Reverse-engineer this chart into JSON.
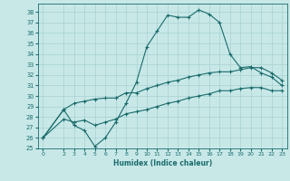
{
  "xlabel": "Humidex (Indice chaleur)",
  "bg_color": "#c8e8e8",
  "grid_color": "#a8d0d0",
  "line_color": "#1a6b6b",
  "xlim": [
    -0.5,
    23.5
  ],
  "ylim": [
    25,
    38.8
  ],
  "yticks": [
    25,
    26,
    27,
    28,
    29,
    30,
    31,
    32,
    33,
    34,
    35,
    36,
    37,
    38
  ],
  "xticks": [
    0,
    2,
    3,
    4,
    5,
    6,
    7,
    8,
    9,
    10,
    11,
    12,
    13,
    14,
    15,
    16,
    17,
    18,
    19,
    20,
    21,
    22,
    23
  ],
  "line1_x": [
    0,
    2,
    3,
    4,
    5,
    6,
    7,
    8,
    9,
    10,
    11,
    12,
    13,
    14,
    15,
    16,
    17,
    18,
    19,
    20,
    21,
    22,
    23
  ],
  "line1_y": [
    26.0,
    28.7,
    27.2,
    26.7,
    25.2,
    26.0,
    27.5,
    29.3,
    31.3,
    34.7,
    36.2,
    37.7,
    37.5,
    37.5,
    38.2,
    37.8,
    37.0,
    34.0,
    32.7,
    32.8,
    32.2,
    31.8,
    31.0
  ],
  "line2_x": [
    0,
    2,
    3,
    4,
    5,
    6,
    7,
    8,
    9,
    10,
    11,
    12,
    13,
    14,
    15,
    16,
    17,
    18,
    19,
    20,
    21,
    22,
    23
  ],
  "line2_y": [
    26.0,
    28.7,
    29.3,
    29.5,
    29.7,
    29.8,
    29.8,
    30.3,
    30.3,
    30.7,
    31.0,
    31.3,
    31.5,
    31.8,
    32.0,
    32.2,
    32.3,
    32.3,
    32.5,
    32.7,
    32.7,
    32.2,
    31.5
  ],
  "line3_x": [
    0,
    2,
    3,
    4,
    5,
    6,
    7,
    8,
    9,
    10,
    11,
    12,
    13,
    14,
    15,
    16,
    17,
    18,
    19,
    20,
    21,
    22,
    23
  ],
  "line3_y": [
    26.0,
    27.8,
    27.5,
    27.7,
    27.2,
    27.5,
    27.8,
    28.3,
    28.5,
    28.7,
    29.0,
    29.3,
    29.5,
    29.8,
    30.0,
    30.2,
    30.5,
    30.5,
    30.7,
    30.8,
    30.8,
    30.5,
    30.5
  ]
}
